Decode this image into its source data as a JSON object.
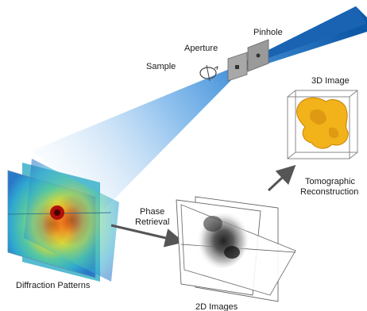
{
  "labels": {
    "pinhole": "Pinhole",
    "aperture": "Aperture",
    "sample": "Sample",
    "image_3d": "3D Image",
    "tomographic_line1": "Tomographic",
    "tomographic_line2": "Reconstruction",
    "phase_line1": "Phase",
    "phase_line2": "Retrieval",
    "diffraction_patterns": "Diffraction Patterns",
    "images_2d": "2D Images"
  },
  "colors": {
    "beam": "#1e6fc0",
    "arrow": "#555555",
    "blob": "#f2b21a",
    "diffraction_center": "#c0140a",
    "diffraction_field": "#38b8c8"
  }
}
